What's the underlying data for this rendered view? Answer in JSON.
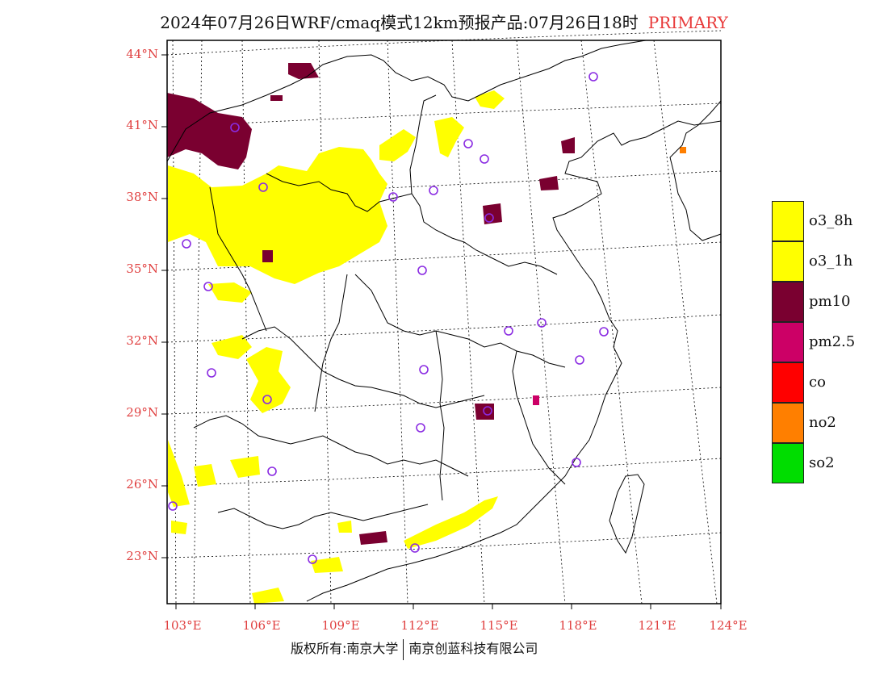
{
  "title": {
    "text": "2024年07月26日WRF/cmaq模式12km预报产品:07月26日18时",
    "tag": "PRIMARY"
  },
  "footer": {
    "left": "版权所有:南京大学",
    "right": "南京创蓝科技有限公司"
  },
  "axes": {
    "lat_labels": [
      "44°N",
      "41°N",
      "38°N",
      "35°N",
      "32°N",
      "29°N",
      "26°N",
      "23°N"
    ],
    "lon_labels": [
      "103°E",
      "106°E",
      "109°E",
      "112°E",
      "115°E",
      "118°E",
      "121°E",
      "124°E"
    ],
    "label_color": "#e04040"
  },
  "legend": [
    {
      "label": "o3_8h",
      "color": "#ffff00"
    },
    {
      "label": "o3_1h",
      "color": "#ffff00"
    },
    {
      "label": "pm10",
      "color": "#7a0030"
    },
    {
      "label": "pm2.5",
      "color": "#cc0066"
    },
    {
      "label": "co",
      "color": "#ff0000"
    },
    {
      "label": "no2",
      "color": "#ff7f00"
    },
    {
      "label": "so2",
      "color": "#00dd00"
    }
  ],
  "colors": {
    "o3": "#ffff00",
    "pm10": "#7a0030",
    "pm25": "#cc0066",
    "no2": "#ff7f00",
    "station_marker": "#8a2be2",
    "coastline": "#000000",
    "grid": "#000000"
  }
}
